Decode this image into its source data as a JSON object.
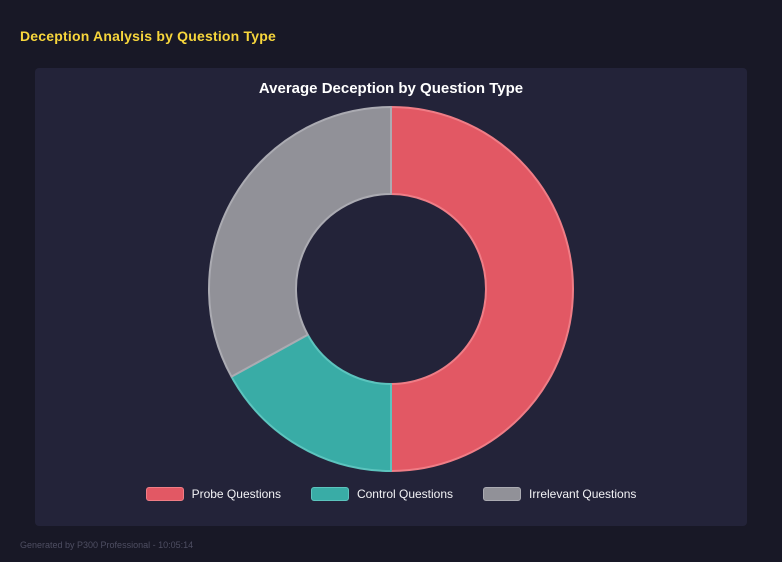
{
  "page": {
    "title": "Deception Analysis by Question Type",
    "footer": "Generated by P300 Professional - 10:05:14"
  },
  "colors": {
    "background": "#181826",
    "panel_background": "#232339",
    "page_title": "#f7d63c",
    "chart_title": "#ffffff",
    "legend_text": "#f2f2f5",
    "footer_text": "#4e4e62"
  },
  "chart_data": {
    "type": "pie",
    "variant": "donut",
    "title": "Average Deception by Question Type",
    "categories": [
      "Probe Questions",
      "Control Questions",
      "Irrelevant Questions"
    ],
    "values": [
      50,
      17,
      33
    ],
    "unit": "percent_of_circle",
    "slice_colors": [
      "#e25864",
      "#39aca6",
      "#919198"
    ],
    "slice_border_colors": [
      "#ef7d86",
      "#5cc4be",
      "#ababb2"
    ],
    "start_angle_deg": 0,
    "direction": "clockwise",
    "cutout_ratio": 0.52,
    "legend_position": "bottom",
    "grid": false
  }
}
